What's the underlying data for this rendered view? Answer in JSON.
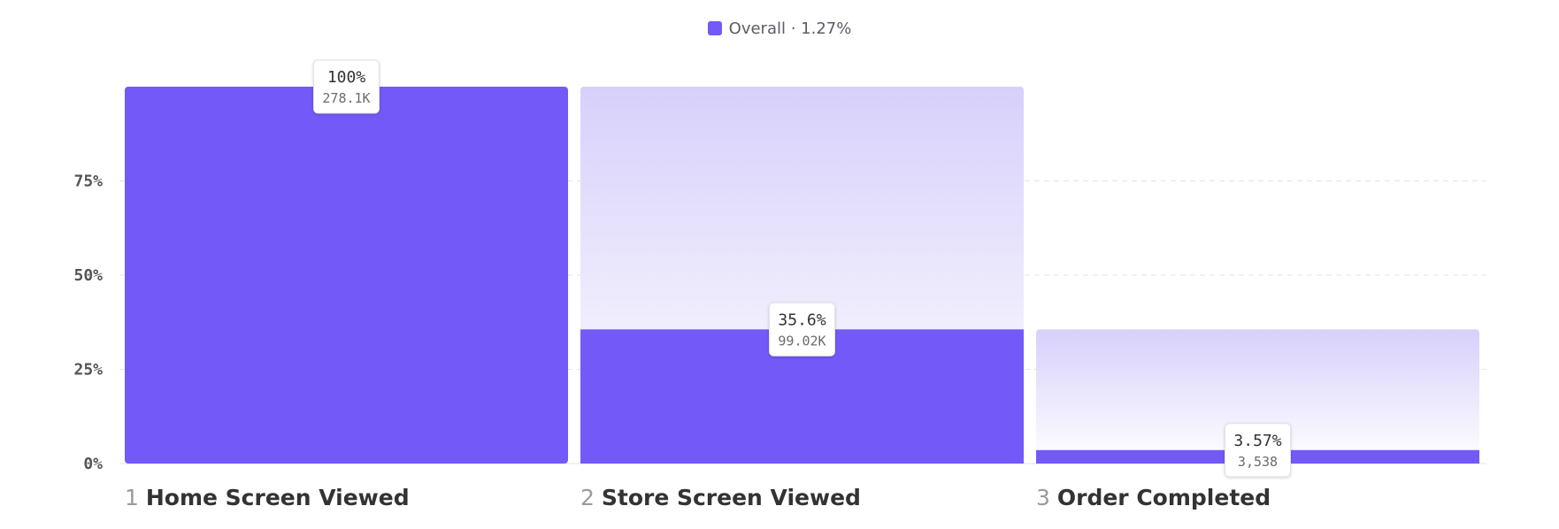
{
  "legend": {
    "label": "Overall · 1.27%"
  },
  "colors": {
    "bar": "#7359f8",
    "ghost_top": "#d7d0fb",
    "grid": "#e3e3ea",
    "axis_text": "#555555",
    "label_text": "#333333",
    "step_num": "#9a9a9a"
  },
  "chart_data": {
    "type": "bar",
    "title": "",
    "xlabel": "",
    "ylabel": "",
    "ylim": [
      0,
      100
    ],
    "yticks": [
      "0%",
      "25%",
      "50%",
      "75%"
    ],
    "ytick_values": [
      0,
      25,
      50,
      75
    ],
    "series": [
      {
        "name": "Overall",
        "summary": "1.27%"
      }
    ],
    "steps": [
      {
        "number": "1",
        "name": "Home Screen Viewed",
        "value": 100,
        "pct_label": "100%",
        "count_label": "278.1K",
        "previous_value": null
      },
      {
        "number": "2",
        "name": "Store Screen Viewed",
        "value": 35.6,
        "pct_label": "35.6%",
        "count_label": "99.02K",
        "previous_value": 100
      },
      {
        "number": "3",
        "name": "Order Completed",
        "value": 3.57,
        "pct_label": "3.57%",
        "count_label": "3,538",
        "previous_value": 35.6
      }
    ]
  }
}
